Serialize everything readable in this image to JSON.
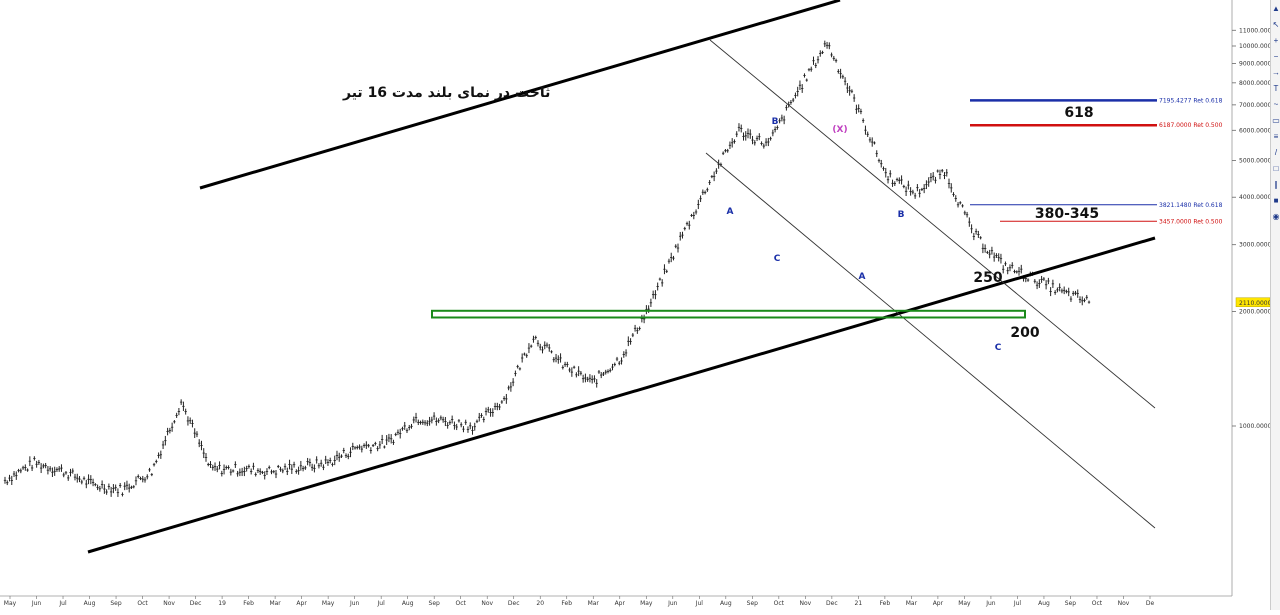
{
  "chart_data": {
    "type": "line",
    "style": "ohlc-bars",
    "scale": "log",
    "title": "ثاخت در نمای بلند مدت 16 تیر",
    "ylim": [
      700,
      12500
    ],
    "y_ticks": [
      11000,
      10000,
      9000,
      8000,
      7000,
      6000,
      5000,
      4000,
      3000,
      2000,
      1000
    ],
    "y_tick_labels": [
      "11000.0000",
      "10000.0000",
      "9000.0000",
      "8000.0000",
      "7000.0000",
      "6000.0000",
      "5000.0000",
      "4000.0000",
      "3000.0000",
      "2000.0000",
      "1000.0000"
    ],
    "last_price": 2110,
    "last_price_label": "2110.0000",
    "x_labels": [
      "May",
      "Jun",
      "Jul",
      "Aug",
      "Sep",
      "Oct",
      "Nov",
      "Dec",
      "19",
      "Feb",
      "Mar",
      "Apr",
      "May",
      "Jun",
      "Jul",
      "Aug",
      "Sep",
      "Oct",
      "Nov",
      "Dec",
      "20",
      "Feb",
      "Mar",
      "Apr",
      "May",
      "Jun",
      "Jul",
      "Aug",
      "Sep",
      "Oct",
      "Nov",
      "Dec",
      "21",
      "Feb",
      "Mar",
      "Apr",
      "May",
      "Jun",
      "Jul",
      "Aug",
      "Sep",
      "Oct",
      "Nov",
      "De"
    ],
    "series": [
      {
        "x": [
          0,
          1,
          2,
          3,
          4,
          5,
          6,
          7,
          8,
          9,
          10,
          11,
          12,
          13,
          14,
          15,
          16,
          17,
          18,
          19,
          20,
          21,
          22,
          23,
          24,
          25,
          26,
          27,
          28,
          29,
          30,
          31,
          32,
          33,
          34,
          35,
          36,
          37,
          38,
          39
        ],
        "values": [
          720,
          800,
          760,
          700,
          680,
          760,
          1160,
          770,
          770,
          760,
          780,
          800,
          880,
          900,
          1050,
          1030,
          1000,
          1180,
          1720,
          1450,
          1300,
          1520,
          2100,
          3100,
          4400,
          6000,
          5500,
          7600,
          10200,
          7000,
          4600,
          4100,
          4700,
          3200,
          2650,
          2450,
          2250,
          2110,
          null,
          null
        ]
      }
    ],
    "fib_levels": [
      {
        "value": 7195,
        "label": "7195.4277 Ret 0.618",
        "color": "#1a2fa8"
      },
      {
        "value": 6187,
        "label": "6187.0000 Ret 0.500",
        "color": "#d01010"
      },
      {
        "value": 3821,
        "label": "3821.1480 Ret 0.618",
        "color": "#1a2fa8"
      },
      {
        "value": 3457,
        "label": "3457.0000 Ret 0.500",
        "color": "#d01010"
      }
    ],
    "level_labels": [
      "618",
      "380-345",
      "250",
      "200"
    ],
    "wave_labels": [
      {
        "text": "B",
        "color": "#1a2fa8"
      },
      {
        "text": "(X)",
        "color": "#c040c0"
      },
      {
        "text": "A",
        "color": "#1a2fa8"
      },
      {
        "text": "C",
        "color": "#1a2fa8"
      },
      {
        "text": "B",
        "color": "#1a2fa8"
      },
      {
        "text": "A",
        "color": "#1a2fa8"
      },
      {
        "text": "C",
        "color": "#1a2fa8"
      }
    ],
    "support_zone": {
      "low": 1930,
      "high": 2010,
      "color": "#1a8a1a"
    },
    "grid": false
  },
  "toolbar": {
    "icons": [
      "arrow-up-icon",
      "cursor-icon",
      "plus-icon",
      "minus-icon",
      "arrow-icon",
      "text-icon",
      "brush-icon",
      "shapes-icon",
      "fib-icon",
      "line-icon",
      "rect-icon",
      "channel-icon",
      "lock-icon",
      "eye-icon"
    ]
  }
}
